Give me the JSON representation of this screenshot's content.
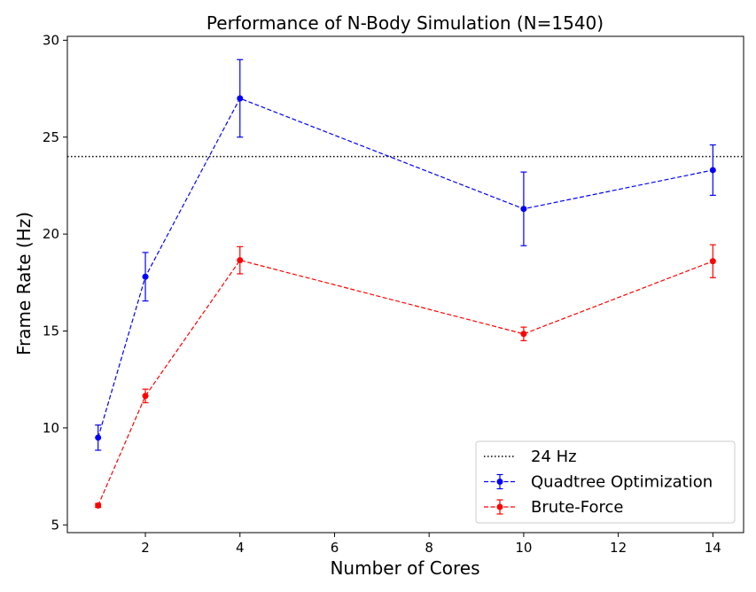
{
  "chart_data": {
    "type": "line",
    "title": "Performance of N-Body Simulation (N=1540)",
    "xlabel": "Number of Cores",
    "ylabel": "Frame Rate (Hz)",
    "xlim": [
      0.35,
      14.65
    ],
    "ylim": [
      4.6,
      30.2
    ],
    "x_ticks": [
      2,
      4,
      6,
      8,
      10,
      12,
      14
    ],
    "y_ticks": [
      5,
      10,
      15,
      20,
      25,
      30
    ],
    "grid": false,
    "legend_position": "lower-right",
    "reference_line": {
      "label": "24 Hz",
      "y": 24,
      "style": "dotted",
      "color": "#000000"
    },
    "series": [
      {
        "name": "Quadtree Optimization",
        "color": "#0000ff",
        "x": [
          1,
          2,
          4,
          10,
          14
        ],
        "y": [
          9.5,
          17.8,
          27.0,
          21.3,
          23.3
        ],
        "yerr": [
          0.65,
          1.25,
          2.0,
          1.9,
          1.3
        ]
      },
      {
        "name": "Brute-Force",
        "color": "#ff0000",
        "x": [
          1,
          2,
          4,
          10,
          14
        ],
        "y": [
          6.0,
          11.65,
          18.65,
          14.85,
          18.6
        ],
        "yerr": [
          0.1,
          0.35,
          0.7,
          0.35,
          0.85
        ]
      }
    ]
  }
}
